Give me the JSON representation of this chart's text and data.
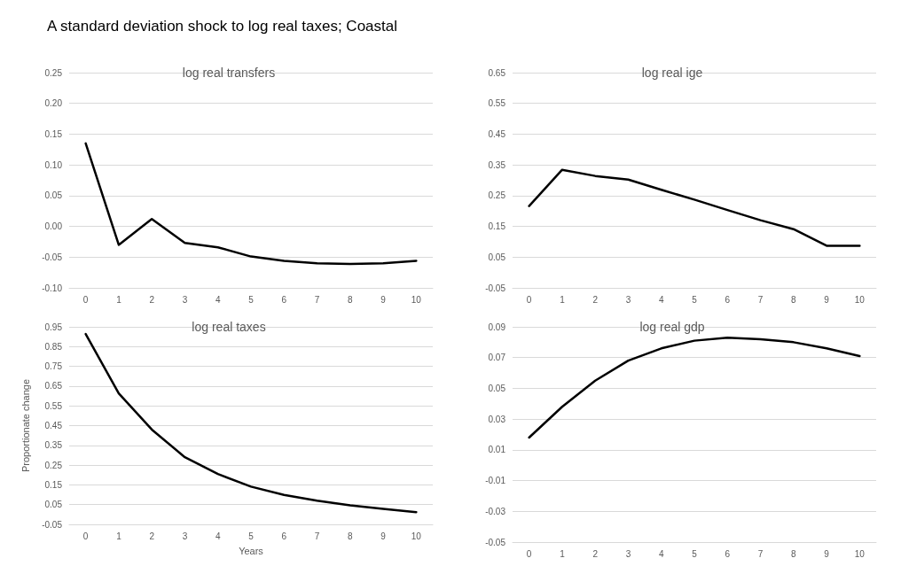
{
  "chart_data": [
    {
      "type": "line",
      "title": "log real transfers",
      "annotations": [
        "A standard deviation shock to log real taxes; Coastal"
      ],
      "categories": [
        "0",
        "1",
        "2",
        "3",
        "4",
        "5",
        "6",
        "7",
        "8",
        "9",
        "10"
      ],
      "series": [
        {
          "color": "#000000",
          "values": [
            0.135,
            -0.03,
            0.012,
            -0.027,
            -0.034,
            -0.049,
            -0.056,
            -0.06,
            -0.061,
            -0.06,
            -0.056
          ]
        }
      ],
      "ylim": [
        -0.1,
        0.25
      ],
      "yticks": [
        {
          "value": -0.1,
          "label": "-0.10"
        },
        -0.05,
        {
          "value": 0,
          "label": "0.00"
        },
        0.05,
        {
          "value": 0.1,
          "label": "0.10"
        },
        0.15,
        {
          "value": 0.2,
          "label": "0.20"
        },
        0.25
      ],
      "grid": "y"
    },
    {
      "type": "line",
      "title": "log real ige",
      "categories": [
        "0",
        "1",
        "2",
        "3",
        "4",
        "5",
        "6",
        "7",
        "8",
        "9",
        "10"
      ],
      "series": [
        {
          "color": "#000000",
          "values": [
            0.216,
            0.334,
            0.314,
            0.302,
            0.269,
            0.237,
            0.203,
            0.17,
            0.141,
            0.087,
            0.087
          ]
        }
      ],
      "ylim": [
        -0.05,
        0.65
      ],
      "yticks": [
        -0.05,
        0.05,
        0.15,
        0.25,
        0.35,
        0.45,
        0.55,
        0.65
      ],
      "grid": "y"
    },
    {
      "type": "line",
      "title": "log real taxes",
      "xlabel": "Years",
      "ylabel": "Proportionate change",
      "categories": [
        "0",
        "1",
        "2",
        "3",
        "4",
        "5",
        "6",
        "7",
        "8",
        "9",
        "10"
      ],
      "series": [
        {
          "color": "#000000",
          "values": [
            0.914,
            0.613,
            0.43,
            0.29,
            0.205,
            0.141,
            0.099,
            0.07,
            0.046,
            0.028,
            0.012
          ]
        }
      ],
      "ylim": [
        -0.05,
        0.95
      ],
      "yticks": [
        -0.05,
        0.05,
        0.15,
        0.25,
        0.35,
        0.45,
        0.55,
        0.65,
        0.75,
        0.85,
        0.95
      ],
      "grid": "y"
    },
    {
      "type": "line",
      "title": "log real gdp",
      "categories": [
        "0",
        "1",
        "2",
        "3",
        "4",
        "5",
        "6",
        "7",
        "8",
        "9",
        "10"
      ],
      "series": [
        {
          "color": "#000000",
          "values": [
            0.018,
            0.038,
            0.055,
            0.068,
            0.076,
            0.081,
            0.083,
            0.082,
            0.08,
            0.076,
            0.071
          ]
        }
      ],
      "ylim": [
        -0.05,
        0.09
      ],
      "yticks": [
        -0.05,
        -0.03,
        -0.01,
        0.01,
        0.03,
        0.05,
        0.07,
        0.09
      ],
      "grid": "y"
    }
  ]
}
